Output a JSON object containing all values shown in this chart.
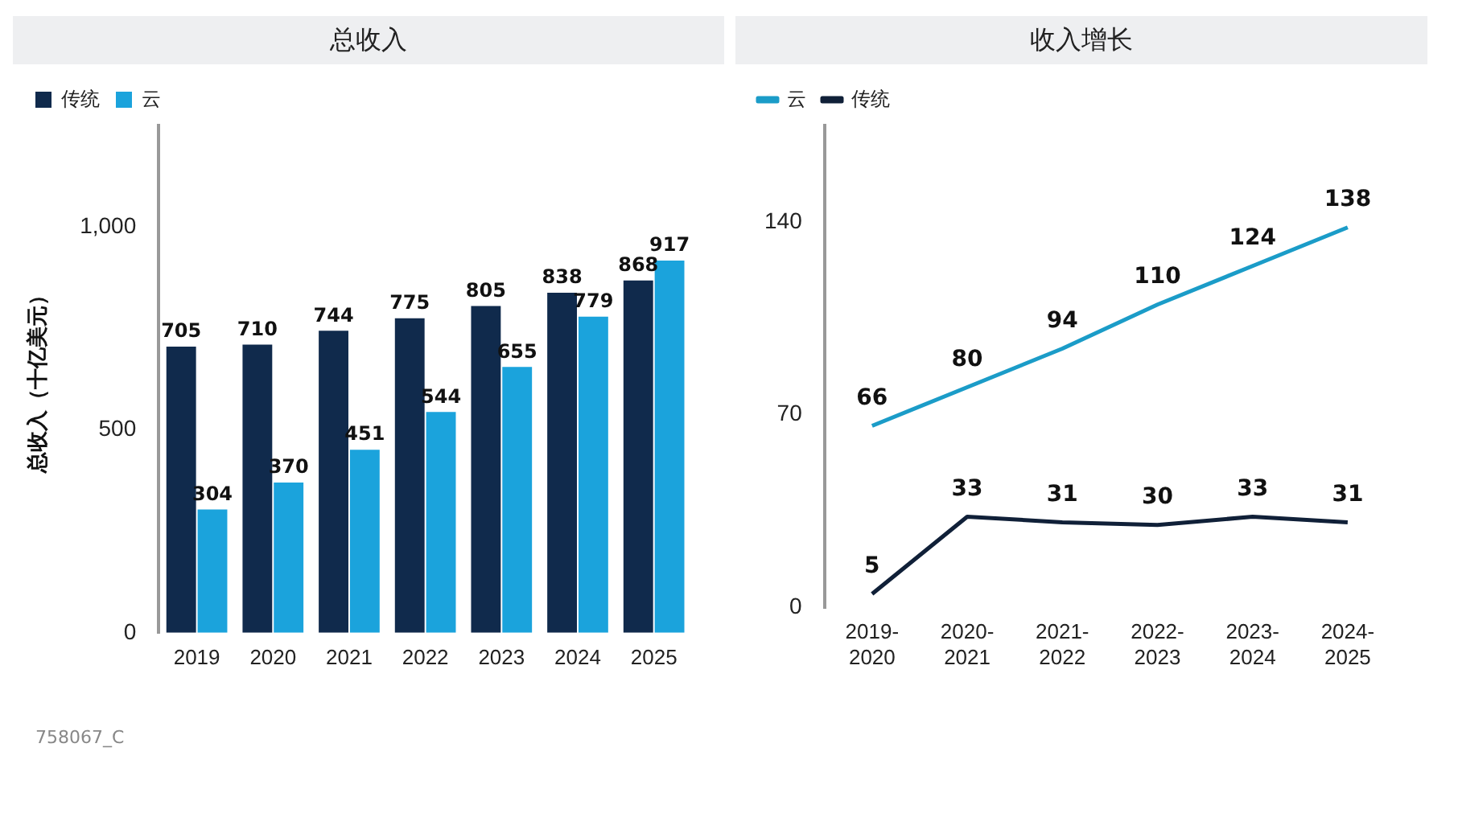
{
  "chart_data": [
    {
      "type": "bar",
      "title": "总收入",
      "ylabel": "总收入（十亿美元）",
      "categories": [
        "2019",
        "2020",
        "2021",
        "2022",
        "2023",
        "2024",
        "2025"
      ],
      "series": [
        {
          "name": "传统",
          "color": "#102a4c",
          "values": [
            705,
            710,
            744,
            775,
            805,
            838,
            868
          ]
        },
        {
          "name": "云",
          "color": "#1ba3dc",
          "values": [
            304,
            370,
            451,
            544,
            655,
            779,
            917
          ]
        }
      ],
      "ylim": [
        0,
        1250
      ],
      "yticks": [
        0,
        500,
        {
          "value": 1000,
          "label": "1,000"
        }
      ],
      "data_labels": true,
      "legend": "top left",
      "grid": false,
      "annotations": [
        "758067_C"
      ]
    },
    {
      "type": "line",
      "title": "收入增长",
      "categories": [
        "2019-2020",
        "2020-2021",
        "2021-2022",
        "2022-2023",
        "2023-2024",
        "2024-2025"
      ],
      "series": [
        {
          "name": "云",
          "color": "#1b9cc8",
          "values": [
            66,
            80,
            94,
            110,
            124,
            138
          ]
        },
        {
          "name": "传统",
          "color": "#102038",
          "values": [
            5,
            33,
            31,
            30,
            33,
            31
          ]
        }
      ],
      "ylim": [
        0,
        175
      ],
      "yticks": [
        0,
        70,
        140
      ],
      "data_labels": true,
      "legend": "top left",
      "grid": false,
      "marker": "none",
      "line_style": "solid"
    }
  ]
}
